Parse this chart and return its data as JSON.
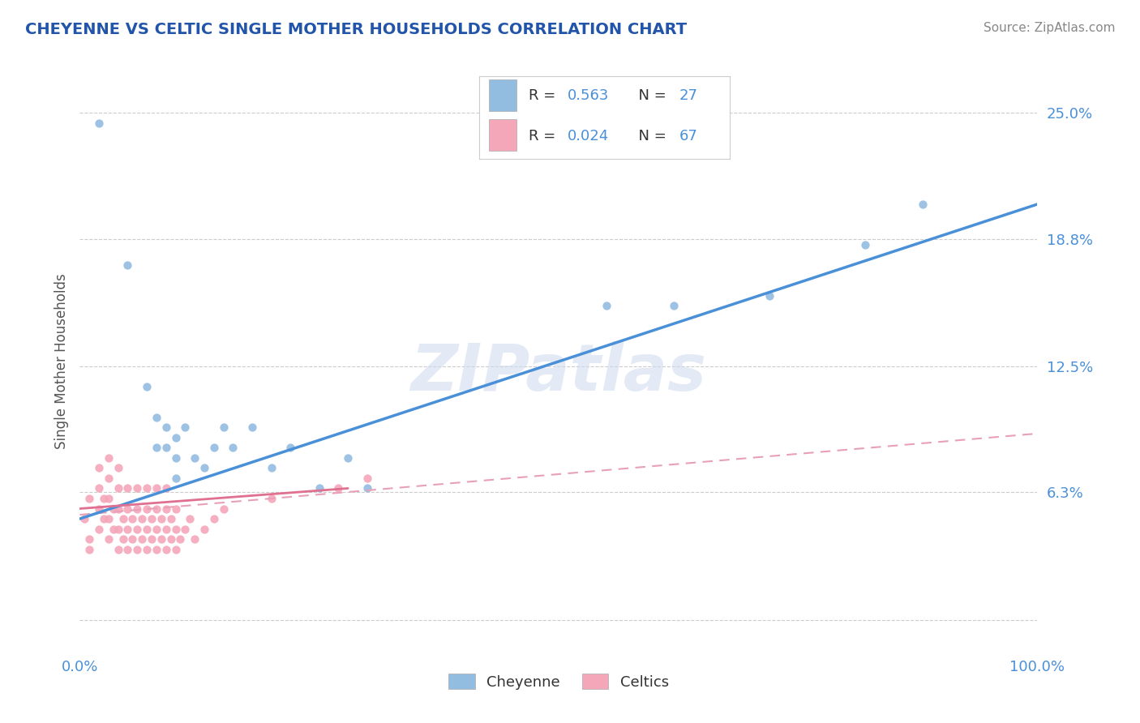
{
  "title": "CHEYENNE VS CELTIC SINGLE MOTHER HOUSEHOLDS CORRELATION CHART",
  "source_text": "Source: ZipAtlas.com",
  "ylabel": "Single Mother Households",
  "watermark": "ZIPatlas",
  "xlim": [
    0.0,
    1.0
  ],
  "ylim": [
    -0.015,
    0.27
  ],
  "yticks": [
    0.0,
    0.063,
    0.125,
    0.188,
    0.25
  ],
  "ytick_labels": [
    "",
    "6.3%",
    "12.5%",
    "18.8%",
    "25.0%"
  ],
  "xtick_labels": [
    "0.0%",
    "100.0%"
  ],
  "xticks": [
    0.0,
    1.0
  ],
  "cheyenne_R": 0.563,
  "cheyenne_N": 27,
  "celtics_R": 0.024,
  "celtics_N": 67,
  "cheyenne_color": "#92bce0",
  "celtics_color": "#f4a7b9",
  "cheyenne_line_color": "#4a90d9",
  "celtics_line_color": "#e07090",
  "celtics_dashed_color": "#e8a0b8",
  "grid_color": "#cccccc",
  "title_color": "#2255aa",
  "source_color": "#888888",
  "axis_label_color": "#555555",
  "tick_label_color": "#4a90d9",
  "legend_R_color": "#4a90d9",
  "legend_N_color": "#4a90d9",
  "cheyenne_x": [
    0.02,
    0.05,
    0.07,
    0.08,
    0.08,
    0.09,
    0.09,
    0.1,
    0.1,
    0.1,
    0.11,
    0.12,
    0.13,
    0.14,
    0.15,
    0.16,
    0.18,
    0.2,
    0.22,
    0.25,
    0.28,
    0.3,
    0.55,
    0.62,
    0.72,
    0.82,
    0.88
  ],
  "cheyenne_y": [
    0.245,
    0.175,
    0.115,
    0.085,
    0.1,
    0.085,
    0.095,
    0.07,
    0.08,
    0.09,
    0.095,
    0.08,
    0.075,
    0.085,
    0.095,
    0.085,
    0.095,
    0.075,
    0.085,
    0.065,
    0.08,
    0.065,
    0.155,
    0.155,
    0.16,
    0.185,
    0.205
  ],
  "celtics_x": [
    0.005,
    0.01,
    0.01,
    0.01,
    0.02,
    0.02,
    0.02,
    0.02,
    0.025,
    0.025,
    0.03,
    0.03,
    0.03,
    0.03,
    0.03,
    0.035,
    0.035,
    0.04,
    0.04,
    0.04,
    0.04,
    0.04,
    0.045,
    0.045,
    0.05,
    0.05,
    0.05,
    0.05,
    0.055,
    0.055,
    0.06,
    0.06,
    0.06,
    0.06,
    0.065,
    0.065,
    0.07,
    0.07,
    0.07,
    0.07,
    0.075,
    0.075,
    0.08,
    0.08,
    0.08,
    0.08,
    0.085,
    0.085,
    0.09,
    0.09,
    0.09,
    0.09,
    0.095,
    0.095,
    0.1,
    0.1,
    0.1,
    0.105,
    0.11,
    0.115,
    0.12,
    0.13,
    0.14,
    0.15,
    0.2,
    0.27,
    0.3
  ],
  "celtics_y": [
    0.05,
    0.06,
    0.04,
    0.035,
    0.045,
    0.055,
    0.065,
    0.075,
    0.05,
    0.06,
    0.04,
    0.05,
    0.06,
    0.07,
    0.08,
    0.045,
    0.055,
    0.035,
    0.045,
    0.055,
    0.065,
    0.075,
    0.04,
    0.05,
    0.035,
    0.045,
    0.055,
    0.065,
    0.04,
    0.05,
    0.035,
    0.045,
    0.055,
    0.065,
    0.04,
    0.05,
    0.035,
    0.045,
    0.055,
    0.065,
    0.04,
    0.05,
    0.035,
    0.045,
    0.055,
    0.065,
    0.04,
    0.05,
    0.035,
    0.045,
    0.055,
    0.065,
    0.04,
    0.05,
    0.035,
    0.045,
    0.055,
    0.04,
    0.045,
    0.05,
    0.04,
    0.045,
    0.05,
    0.055,
    0.06,
    0.065,
    0.07
  ],
  "cheyenne_line_x": [
    0.0,
    1.0
  ],
  "cheyenne_line_y": [
    0.05,
    0.205
  ],
  "celtics_solid_line_x": [
    0.0,
    0.28
  ],
  "celtics_solid_line_y": [
    0.055,
    0.065
  ],
  "celtics_dashed_line_x": [
    0.0,
    1.0
  ],
  "celtics_dashed_line_y": [
    0.052,
    0.092
  ]
}
